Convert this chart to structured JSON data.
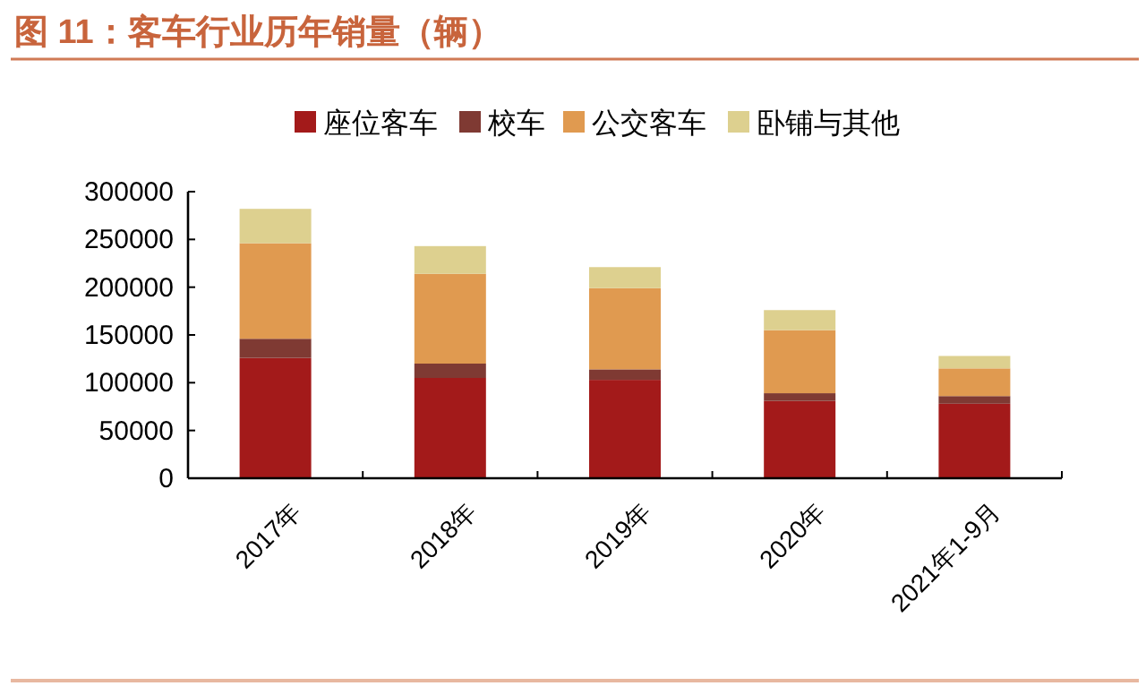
{
  "chart_data": {
    "type": "bar",
    "title": "图 11：客车行业历年销量（辆）",
    "stacked": true,
    "legend": "top",
    "categories": [
      "2017年",
      "2018年",
      "2019年",
      "2020年",
      "2021年1-9月"
    ],
    "series": [
      {
        "name": "座位客车",
        "color": "#a31a1a",
        "values": [
          126000,
          105000,
          103000,
          81000,
          78000
        ]
      },
      {
        "name": "校车",
        "color": "#7f3a33",
        "values": [
          20000,
          15000,
          11000,
          8000,
          8000
        ]
      },
      {
        "name": "公交客车",
        "color": "#e09a50",
        "values": [
          100000,
          94000,
          85000,
          66000,
          29000
        ]
      },
      {
        "name": "卧铺与其他",
        "color": "#ddd08f",
        "values": [
          36000,
          29000,
          22000,
          21000,
          13000
        ]
      }
    ],
    "ylim": [
      0,
      300000
    ],
    "yticks": [
      0,
      50000,
      100000,
      150000,
      200000,
      250000,
      300000
    ],
    "grid": false
  }
}
